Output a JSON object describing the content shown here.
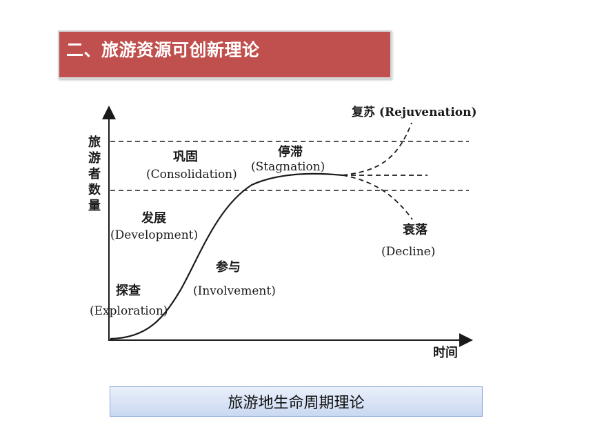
{
  "slide": {
    "title": "二、旅游资源可创新理论",
    "caption": "旅游地生命周期理论"
  },
  "diagram": {
    "y_axis_label": [
      "旅",
      "游",
      "者",
      "数",
      "量"
    ],
    "x_axis_label": "时间",
    "stages": {
      "exploration": {
        "zh": "探查",
        "en": "(Exploration)"
      },
      "involvement": {
        "zh": "参与",
        "en": "(Involvement)"
      },
      "development": {
        "zh": "发展",
        "en": "(Development)"
      },
      "consolidation": {
        "zh": "巩固",
        "en": "(Consolidation)"
      },
      "stagnation": {
        "zh": "停滞",
        "en": "(Stagnation)"
      },
      "rejuvenation": "复苏 (Rejuvenation)",
      "decline": {
        "zh": "衰落",
        "en": "(Decline)"
      }
    },
    "colors": {
      "title_banner": "#c0504d",
      "line": "#1a1a1a"
    }
  }
}
